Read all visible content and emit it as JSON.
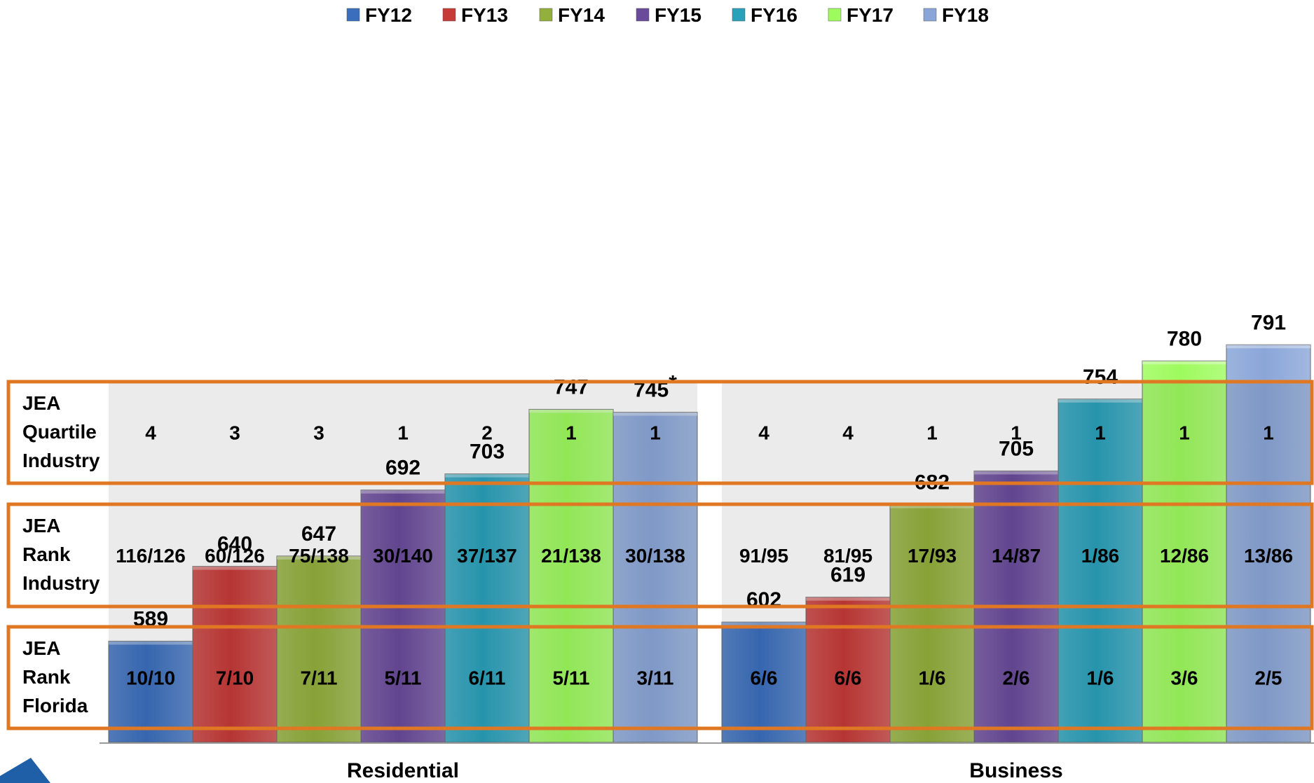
{
  "chart_data": {
    "type": "bar",
    "categories": [
      "Residential",
      "Business"
    ],
    "series": [
      {
        "name": "FY12",
        "values": [
          589,
          602
        ],
        "color": "#3b6fbe"
      },
      {
        "name": "FY13",
        "values": [
          640,
          619
        ],
        "color": "#c63a38"
      },
      {
        "name": "FY14",
        "values": [
          647,
          682
        ],
        "color": "#93b03c"
      },
      {
        "name": "FY15",
        "values": [
          692,
          705
        ],
        "color": "#6a4b9b"
      },
      {
        "name": "FY16",
        "values": [
          703,
          754
        ],
        "color": "#2aa1bb"
      },
      {
        "name": "FY17",
        "values": [
          747,
          780
        ],
        "color": "#9efb5e"
      },
      {
        "name": "FY18",
        "values": [
          745,
          791
        ],
        "color": "#8aa6d8"
      }
    ],
    "value_labels": [
      [
        "589",
        "602"
      ],
      [
        "640",
        "619"
      ],
      [
        "647",
        "682"
      ],
      [
        "692",
        "705"
      ],
      [
        "703",
        "754"
      ],
      [
        "747",
        "780"
      ],
      [
        "745",
        "791"
      ]
    ],
    "value_footnote": {
      "series": 6,
      "category": 0,
      "mark": "*"
    },
    "ylim": [
      520,
      800
    ],
    "legend_position": "top",
    "grid": false,
    "rows": [
      {
        "label": [
          "JEA",
          "Quartile",
          "Industry"
        ],
        "values": [
          [
            "4",
            "4"
          ],
          [
            "3",
            "4"
          ],
          [
            "3",
            "1"
          ],
          [
            "1",
            "1"
          ],
          [
            "2",
            "1"
          ],
          [
            "1",
            "1"
          ],
          [
            "1",
            "1"
          ]
        ]
      },
      {
        "label": [
          "JEA",
          "Rank",
          "Industry"
        ],
        "values": [
          [
            "116/126",
            "91/95"
          ],
          [
            "60/126",
            "81/95"
          ],
          [
            "75/138",
            "17/93"
          ],
          [
            "30/140",
            "14/87"
          ],
          [
            "37/137",
            "1/86"
          ],
          [
            "21/138",
            "12/86"
          ],
          [
            "30/138",
            "13/86"
          ]
        ]
      },
      {
        "label": [
          "JEA",
          "Rank",
          "Florida"
        ],
        "values": [
          [
            "10/10",
            "6/6"
          ],
          [
            "7/10",
            "6/6"
          ],
          [
            "7/11",
            "1/6"
          ],
          [
            "5/11",
            "2/6"
          ],
          [
            "6/11",
            "1/6"
          ],
          [
            "5/11",
            "3/6"
          ],
          [
            "3/11",
            "2/5"
          ]
        ]
      }
    ],
    "row_box_color": "#e07722"
  }
}
